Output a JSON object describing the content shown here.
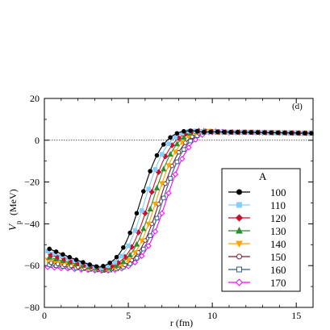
{
  "chart_data": {
    "type": "line",
    "title": "",
    "panel_label": "(d)",
    "xlabel": "r (fm)",
    "ylabel_main": "V",
    "ylabel_sub": "p",
    "ylabel_unit": "(MeV)",
    "xlim": [
      0,
      16
    ],
    "ylim": [
      -80,
      20
    ],
    "x_ticks": [
      0,
      5,
      10,
      15
    ],
    "y_ticks": [
      -80,
      -60,
      -40,
      -20,
      0,
      20
    ],
    "grid": false,
    "zero_line": true,
    "legend_title": "A",
    "legend_position": "right-center",
    "series": [
      {
        "name": "100",
        "color": "#000000",
        "marker": "filled-circle",
        "r_half": 5.7,
        "a": 0.62,
        "shift": 0,
        "x": [
          0,
          0.4,
          1.5,
          2.5,
          3.0,
          3.5,
          4.0,
          4.5,
          5.0,
          5.5,
          6.0,
          6.5,
          7.0,
          7.5,
          8.0,
          9.0,
          10.0,
          12.0,
          14.0,
          16.0
        ],
        "y": [
          -51,
          -52,
          -55,
          -58,
          -60,
          -62,
          -56,
          -44,
          -31,
          -18,
          -7,
          0,
          3,
          4.5,
          5,
          5,
          4.5,
          4,
          3.5,
          3
        ]
      },
      {
        "name": "110",
        "color": "#87cefa",
        "marker": "filled-square",
        "r_half": 5.95,
        "a": 0.63,
        "shift": 0.25
      },
      {
        "name": "120",
        "color": "#c8102e",
        "marker": "filled-diamond",
        "r_half": 6.2,
        "a": 0.64,
        "shift": 0.5
      },
      {
        "name": "130",
        "color": "#2e8b2e",
        "marker": "filled-triangle-up",
        "r_half": 6.42,
        "a": 0.65,
        "shift": 0.75
      },
      {
        "name": "140",
        "color": "#ffa500",
        "marker": "filled-triangle-down",
        "r_half": 6.62,
        "a": 0.66,
        "shift": 1.0
      },
      {
        "name": "150",
        "color": "#7a1f2b",
        "marker": "open-circle",
        "r_half": 6.82,
        "a": 0.67,
        "shift": 1.2
      },
      {
        "name": "160",
        "color": "#2c5f8a",
        "marker": "open-square",
        "r_half": 7.0,
        "a": 0.68,
        "shift": 1.4
      },
      {
        "name": "170",
        "color": "#ff00ff",
        "marker": "open-diamond",
        "r_half": 7.2,
        "a": 0.69,
        "shift": 1.6
      }
    ]
  }
}
